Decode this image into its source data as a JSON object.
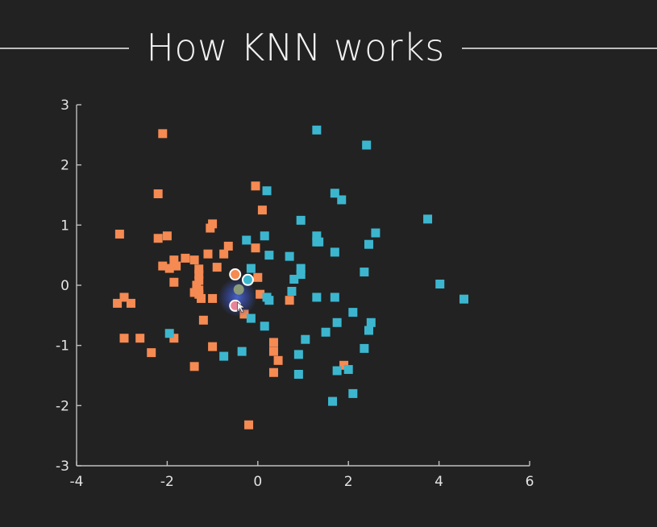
{
  "title": "How KNN works",
  "chart_data": {
    "type": "scatter",
    "title": "How KNN works",
    "xlabel": "",
    "ylabel": "",
    "xlim": [
      -4,
      6
    ],
    "ylim": [
      -3,
      3
    ],
    "xticks": [
      -4,
      -2,
      0,
      2,
      4,
      6
    ],
    "yticks": [
      -3,
      -2,
      -1,
      0,
      1,
      2,
      3
    ],
    "grid": false,
    "colors": {
      "orange": "#f58a52",
      "blue": "#3cb6cf",
      "query": "#8a9a78",
      "highlight": "#3a50b4"
    },
    "series": [
      {
        "color": "#f58a52",
        "points": [
          [
            -2.1,
            2.52
          ],
          [
            -0.05,
            1.65
          ],
          [
            -2.2,
            1.52
          ],
          [
            0.1,
            1.25
          ],
          [
            -1.0,
            1.02
          ],
          [
            -1.05,
            0.95
          ],
          [
            -3.05,
            0.85
          ],
          [
            -2.2,
            0.78
          ],
          [
            -2.0,
            0.82
          ],
          [
            -0.65,
            0.65
          ],
          [
            -0.05,
            0.62
          ],
          [
            -0.75,
            0.52
          ],
          [
            -1.1,
            0.52
          ],
          [
            -1.6,
            0.45
          ],
          [
            -1.4,
            0.42
          ],
          [
            -1.85,
            0.42
          ],
          [
            -1.8,
            0.32
          ],
          [
            -2.1,
            0.32
          ],
          [
            -1.95,
            0.28
          ],
          [
            -1.3,
            0.27
          ],
          [
            -0.9,
            0.3
          ],
          [
            -1.3,
            0.18
          ],
          [
            -1.3,
            0.08
          ],
          [
            -1.35,
            0.0
          ],
          [
            -1.3,
            -0.08
          ],
          [
            -1.4,
            -0.12
          ],
          [
            -1.3,
            -0.15
          ],
          [
            -1.25,
            -0.22
          ],
          [
            -1.0,
            -0.22
          ],
          [
            -1.85,
            0.05
          ],
          [
            0.0,
            0.13
          ],
          [
            0.05,
            -0.15
          ],
          [
            0.7,
            -0.25
          ],
          [
            -2.95,
            -0.2
          ],
          [
            -3.1,
            -0.3
          ],
          [
            -2.8,
            -0.3
          ],
          [
            -0.3,
            -0.48
          ],
          [
            -1.2,
            -0.58
          ],
          [
            -2.95,
            -0.88
          ],
          [
            -2.6,
            -0.88
          ],
          [
            -1.85,
            -0.88
          ],
          [
            -1.0,
            -1.02
          ],
          [
            0.35,
            -0.95
          ],
          [
            0.35,
            -1.1
          ],
          [
            0.45,
            -1.25
          ],
          [
            -2.35,
            -1.12
          ],
          [
            -1.4,
            -1.35
          ],
          [
            0.35,
            -1.45
          ],
          [
            1.9,
            -1.33
          ],
          [
            -0.2,
            -2.32
          ]
        ]
      },
      {
        "color": "#3cb6cf",
        "points": [
          [
            1.3,
            2.58
          ],
          [
            2.4,
            2.33
          ],
          [
            0.2,
            1.57
          ],
          [
            1.7,
            1.53
          ],
          [
            1.85,
            1.42
          ],
          [
            0.95,
            1.08
          ],
          [
            3.75,
            1.1
          ],
          [
            1.3,
            0.82
          ],
          [
            1.35,
            0.72
          ],
          [
            2.6,
            0.87
          ],
          [
            0.15,
            0.82
          ],
          [
            -0.25,
            0.75
          ],
          [
            1.3,
            0.72
          ],
          [
            2.45,
            0.68
          ],
          [
            0.25,
            0.5
          ],
          [
            0.7,
            0.48
          ],
          [
            1.7,
            0.55
          ],
          [
            -0.15,
            0.28
          ],
          [
            0.95,
            0.28
          ],
          [
            0.95,
            0.18
          ],
          [
            2.35,
            0.22
          ],
          [
            0.8,
            0.1
          ],
          [
            0.75,
            -0.1
          ],
          [
            0.2,
            -0.2
          ],
          [
            0.25,
            -0.25
          ],
          [
            1.3,
            -0.2
          ],
          [
            1.7,
            -0.2
          ],
          [
            -0.15,
            -0.55
          ],
          [
            0.15,
            -0.68
          ],
          [
            2.1,
            -0.45
          ],
          [
            1.75,
            -0.62
          ],
          [
            2.5,
            -0.62
          ],
          [
            2.45,
            -0.75
          ],
          [
            1.5,
            -0.78
          ],
          [
            1.05,
            -0.9
          ],
          [
            -1.95,
            -0.8
          ],
          [
            -0.35,
            -1.1
          ],
          [
            -0.75,
            -1.18
          ],
          [
            0.9,
            -1.15
          ],
          [
            2.35,
            -1.05
          ],
          [
            1.75,
            -1.42
          ],
          [
            2.0,
            -1.4
          ],
          [
            0.9,
            -1.48
          ],
          [
            2.1,
            -1.8
          ],
          [
            1.65,
            -1.93
          ],
          [
            4.02,
            0.02
          ],
          [
            4.55,
            -0.23
          ]
        ]
      }
    ],
    "query_points": [
      {
        "x": -0.5,
        "y": 0.18,
        "fill": "#f58a52",
        "ring": "#ffffff"
      },
      {
        "x": -0.22,
        "y": 0.09,
        "fill": "#3cb6cf",
        "ring": "#ffffff"
      },
      {
        "x": -0.42,
        "y": -0.07,
        "fill": "#8a9a78",
        "ring": "none"
      },
      {
        "x": -0.5,
        "y": -0.34,
        "fill": "#e8849a",
        "ring": "#ffffff"
      }
    ],
    "highlight": {
      "x": -0.45,
      "y": -0.2,
      "color": "#3a50b4"
    }
  }
}
